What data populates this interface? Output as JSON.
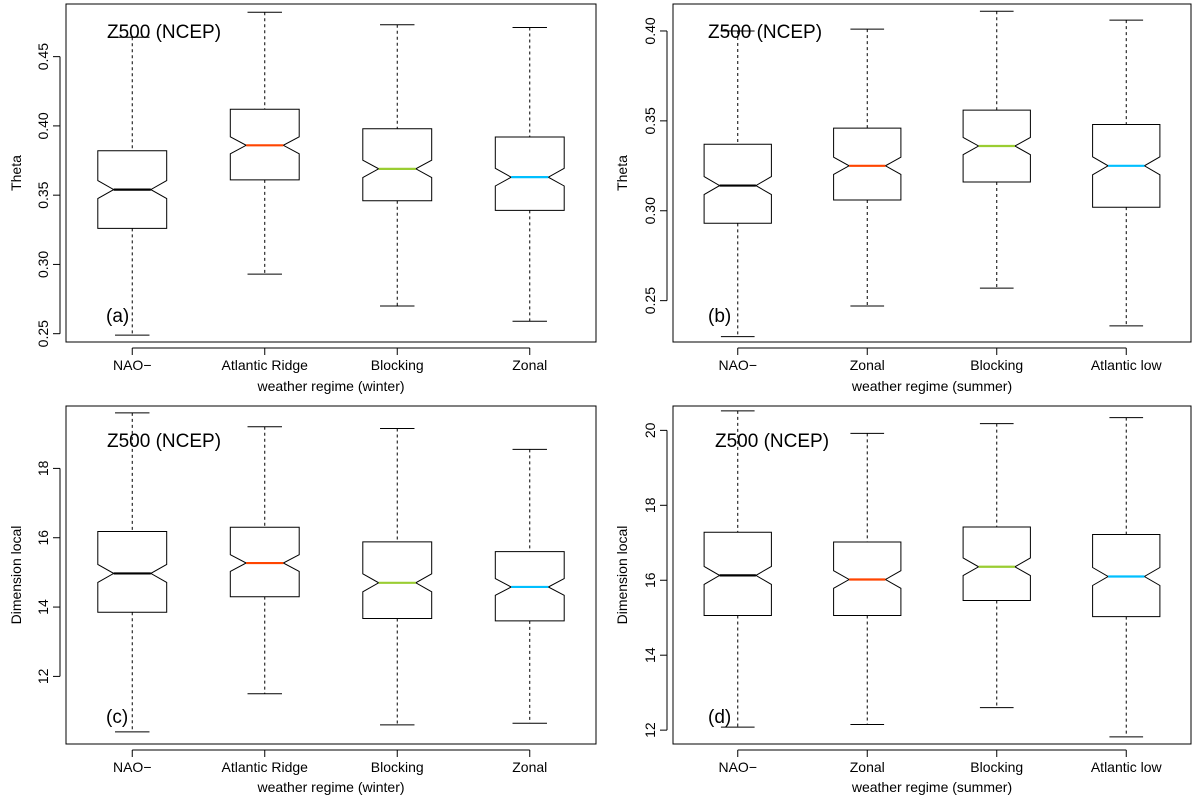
{
  "chart_data": [
    {
      "panel_label": "(a)",
      "annotation": "Z500 (NCEP)",
      "type": "boxplot",
      "notched": true,
      "xlabel": "weather regime (winter)",
      "ylabel": "Theta",
      "ylim": [
        0.244,
        0.488
      ],
      "yticks": [
        "0.25",
        "0.30",
        "0.35",
        "0.40",
        "0.45"
      ],
      "categories": [
        "NAO−",
        "Atlantic Ridge",
        "Blocking",
        "Zonal"
      ],
      "median_colors": [
        "#000000",
        "#ff4500",
        "#9acd32",
        "#00bfff"
      ],
      "boxes": [
        {
          "min": 0.249,
          "q1": 0.326,
          "median": 0.354,
          "q3": 0.382,
          "max": 0.464
        },
        {
          "min": 0.293,
          "q1": 0.361,
          "median": 0.386,
          "q3": 0.412,
          "max": 0.482
        },
        {
          "min": 0.27,
          "q1": 0.346,
          "median": 0.369,
          "q3": 0.398,
          "max": 0.473
        },
        {
          "min": 0.259,
          "q1": 0.339,
          "median": 0.363,
          "q3": 0.392,
          "max": 0.471
        }
      ]
    },
    {
      "panel_label": "(b)",
      "annotation": "Z500 (NCEP)",
      "type": "boxplot",
      "notched": true,
      "xlabel": "weather regime (summer)",
      "ylabel": "Theta",
      "ylim": [
        0.227,
        0.415
      ],
      "yticks": [
        "0.25",
        "0.30",
        "0.35",
        "0.40"
      ],
      "categories": [
        "NAO−",
        "Zonal",
        "Blocking",
        "Atlantic low"
      ],
      "median_colors": [
        "#000000",
        "#ff4500",
        "#9acd32",
        "#00bfff"
      ],
      "boxes": [
        {
          "min": 0.23,
          "q1": 0.293,
          "median": 0.314,
          "q3": 0.337,
          "max": 0.4
        },
        {
          "min": 0.247,
          "q1": 0.306,
          "median": 0.325,
          "q3": 0.346,
          "max": 0.401
        },
        {
          "min": 0.257,
          "q1": 0.316,
          "median": 0.336,
          "q3": 0.356,
          "max": 0.411
        },
        {
          "min": 0.236,
          "q1": 0.302,
          "median": 0.325,
          "q3": 0.348,
          "max": 0.406
        }
      ]
    },
    {
      "panel_label": "(c)",
      "annotation": "Z500 (NCEP)",
      "type": "boxplot",
      "notched": true,
      "xlabel": "weather regime (winter)",
      "ylabel": "Dimension local",
      "ylim": [
        10.05,
        19.8
      ],
      "yticks": [
        "12",
        "14",
        "16",
        "18"
      ],
      "categories": [
        "NAO−",
        "Atlantic Ridge",
        "Blocking",
        "Zonal"
      ],
      "median_colors": [
        "#000000",
        "#ff4500",
        "#9acd32",
        "#00bfff"
      ],
      "boxes": [
        {
          "min": 10.4,
          "q1": 13.85,
          "median": 14.97,
          "q3": 16.18,
          "max": 19.6
        },
        {
          "min": 11.5,
          "q1": 14.3,
          "median": 15.27,
          "q3": 16.3,
          "max": 19.2
        },
        {
          "min": 10.6,
          "q1": 13.67,
          "median": 14.7,
          "q3": 15.88,
          "max": 19.15
        },
        {
          "min": 10.65,
          "q1": 13.6,
          "median": 14.58,
          "q3": 15.6,
          "max": 18.55
        }
      ]
    },
    {
      "panel_label": "(d)",
      "annotation": "Z500 (NCEP)",
      "type": "boxplot",
      "notched": true,
      "xlabel": "weather regime (summer)",
      "ylabel": "Dimension local",
      "ylim": [
        11.63,
        20.65
      ],
      "yticks": [
        "12",
        "14",
        "16",
        "18",
        "20"
      ],
      "categories": [
        "NAO−",
        "Zonal",
        "Blocking",
        "Atlantic low"
      ],
      "median_colors": [
        "#000000",
        "#ff4500",
        "#9acd32",
        "#00bfff"
      ],
      "boxes": [
        {
          "min": 12.08,
          "q1": 15.06,
          "median": 16.13,
          "q3": 17.28,
          "max": 20.52
        },
        {
          "min": 12.15,
          "q1": 15.06,
          "median": 16.02,
          "q3": 17.02,
          "max": 19.92
        },
        {
          "min": 12.6,
          "q1": 15.46,
          "median": 16.36,
          "q3": 17.42,
          "max": 20.18
        },
        {
          "min": 11.82,
          "q1": 15.03,
          "median": 16.1,
          "q3": 17.22,
          "max": 20.34
        }
      ]
    }
  ]
}
